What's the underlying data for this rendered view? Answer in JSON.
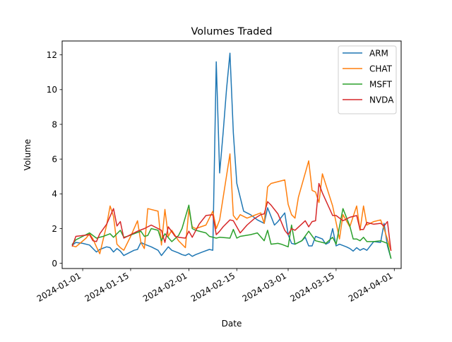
{
  "chart_data": {
    "type": "line",
    "title": "Volumes Traded",
    "xlabel": "Date",
    "ylabel": "Volume",
    "xlim": [
      "2023-12-26",
      "2024-04-03"
    ],
    "ylim": [
      -0.3,
      12.8
    ],
    "x_ticks": [
      "2024-01-01",
      "2024-01-15",
      "2024-02-01",
      "2024-02-15",
      "2024-03-01",
      "2024-03-15",
      "2024-04-01"
    ],
    "y_ticks": [
      0,
      2,
      4,
      6,
      8,
      10,
      12
    ],
    "grid": false,
    "legend_position": "top-right",
    "series": [
      {
        "name": "ARM",
        "color": "#1f77b4",
        "points": [
          [
            "2023-12-29",
            1.05
          ],
          [
            "2023-12-30",
            1.2
          ],
          [
            "2024-01-01",
            1.15
          ],
          [
            "2024-01-03",
            1.05
          ],
          [
            "2024-01-05",
            0.65
          ],
          [
            "2024-01-06",
            0.8
          ],
          [
            "2024-01-08",
            0.95
          ],
          [
            "2024-01-09",
            0.9
          ],
          [
            "2024-01-10",
            0.65
          ],
          [
            "2024-01-11",
            0.85
          ],
          [
            "2024-01-12",
            0.7
          ],
          [
            "2024-01-13",
            0.45
          ],
          [
            "2024-01-16",
            0.75
          ],
          [
            "2024-01-17",
            0.8
          ],
          [
            "2024-01-18",
            1.2
          ],
          [
            "2024-01-19",
            1.1
          ],
          [
            "2024-01-21",
            0.95
          ],
          [
            "2024-01-23",
            0.75
          ],
          [
            "2024-01-24",
            0.45
          ],
          [
            "2024-01-26",
            0.95
          ],
          [
            "2024-01-27",
            0.75
          ],
          [
            "2024-01-29",
            0.6
          ],
          [
            "2024-01-30",
            0.5
          ],
          [
            "2024-01-31",
            0.45
          ],
          [
            "2024-02-01",
            0.55
          ],
          [
            "2024-02-02",
            0.4
          ],
          [
            "2024-02-03",
            0.5
          ],
          [
            "2024-02-05",
            0.65
          ],
          [
            "2024-02-07",
            0.8
          ],
          [
            "2024-02-08",
            0.75
          ],
          [
            "2024-02-09",
            11.6
          ],
          [
            "2024-02-10",
            5.2
          ],
          [
            "2024-02-11",
            7.5
          ],
          [
            "2024-02-12",
            10.0
          ],
          [
            "2024-02-13",
            12.1
          ],
          [
            "2024-02-14",
            7.5
          ],
          [
            "2024-02-15",
            4.6
          ],
          [
            "2024-02-17",
            3.0
          ],
          [
            "2024-02-19",
            2.8
          ],
          [
            "2024-02-21",
            2.5
          ],
          [
            "2024-02-23",
            2.3
          ],
          [
            "2024-02-24",
            3.2
          ],
          [
            "2024-02-26",
            2.2
          ],
          [
            "2024-02-27",
            2.4
          ],
          [
            "2024-02-29",
            2.9
          ],
          [
            "2024-03-01",
            1.65
          ],
          [
            "2024-03-02",
            1.15
          ],
          [
            "2024-03-03",
            1.1
          ],
          [
            "2024-03-05",
            1.3
          ],
          [
            "2024-03-06",
            1.5
          ],
          [
            "2024-03-07",
            1.0
          ],
          [
            "2024-03-08",
            1.0
          ],
          [
            "2024-03-09",
            1.55
          ],
          [
            "2024-03-11",
            1.4
          ],
          [
            "2024-03-12",
            1.1
          ],
          [
            "2024-03-13",
            1.2
          ],
          [
            "2024-03-14",
            2.0
          ],
          [
            "2024-03-15",
            1.0
          ],
          [
            "2024-03-16",
            1.1
          ],
          [
            "2024-03-18",
            0.95
          ],
          [
            "2024-03-19",
            0.85
          ],
          [
            "2024-03-20",
            0.7
          ],
          [
            "2024-03-21",
            0.9
          ],
          [
            "2024-03-22",
            0.75
          ],
          [
            "2024-03-23",
            0.85
          ],
          [
            "2024-03-24",
            0.75
          ],
          [
            "2024-03-26",
            1.25
          ],
          [
            "2024-03-28",
            1.2
          ],
          [
            "2024-03-29",
            2.3
          ],
          [
            "2024-03-30",
            1.0
          ],
          [
            "2024-03-31",
            0.3
          ]
        ]
      },
      {
        "name": "CHAT",
        "color": "#ff7f0e",
        "points": [
          [
            "2023-12-29",
            1.0
          ],
          [
            "2023-12-30",
            0.95
          ],
          [
            "2024-01-02",
            1.45
          ],
          [
            "2024-01-03",
            1.7
          ],
          [
            "2024-01-04",
            1.4
          ],
          [
            "2024-01-05",
            0.95
          ],
          [
            "2024-01-06",
            0.55
          ],
          [
            "2024-01-08",
            2.2
          ],
          [
            "2024-01-09",
            3.3
          ],
          [
            "2024-01-10",
            2.7
          ],
          [
            "2024-01-11",
            1.1
          ],
          [
            "2024-01-12",
            0.9
          ],
          [
            "2024-01-13",
            0.75
          ],
          [
            "2024-01-15",
            1.55
          ],
          [
            "2024-01-17",
            2.45
          ],
          [
            "2024-01-18",
            1.2
          ],
          [
            "2024-01-19",
            0.85
          ],
          [
            "2024-01-20",
            3.15
          ],
          [
            "2024-01-23",
            3.0
          ],
          [
            "2024-01-24",
            1.05
          ],
          [
            "2024-01-25",
            3.1
          ],
          [
            "2024-01-26",
            1.55
          ],
          [
            "2024-01-27",
            1.9
          ],
          [
            "2024-01-28",
            1.6
          ],
          [
            "2024-01-29",
            1.3
          ],
          [
            "2024-01-31",
            0.9
          ],
          [
            "2024-02-01",
            3.1
          ],
          [
            "2024-02-02",
            2.1
          ],
          [
            "2024-02-03",
            2.0
          ],
          [
            "2024-02-06",
            2.2
          ],
          [
            "2024-02-08",
            3.0
          ],
          [
            "2024-02-09",
            2.0
          ],
          [
            "2024-02-10",
            2.5
          ],
          [
            "2024-02-13",
            6.3
          ],
          [
            "2024-02-14",
            2.75
          ],
          [
            "2024-02-15",
            2.5
          ],
          [
            "2024-02-16",
            2.8
          ],
          [
            "2024-02-18",
            2.6
          ],
          [
            "2024-02-20",
            2.75
          ],
          [
            "2024-02-22",
            2.9
          ],
          [
            "2024-02-23",
            2.3
          ],
          [
            "2024-02-24",
            4.4
          ],
          [
            "2024-02-25",
            4.6
          ],
          [
            "2024-02-27",
            4.7
          ],
          [
            "2024-02-29",
            4.8
          ],
          [
            "2024-03-01",
            3.4
          ],
          [
            "2024-03-02",
            2.8
          ],
          [
            "2024-03-03",
            2.6
          ],
          [
            "2024-03-04",
            3.8
          ],
          [
            "2024-03-07",
            5.9
          ],
          [
            "2024-03-08",
            4.2
          ],
          [
            "2024-03-09",
            4.1
          ],
          [
            "2024-03-10",
            3.5
          ],
          [
            "2024-03-11",
            5.15
          ],
          [
            "2024-03-14",
            3.3
          ],
          [
            "2024-03-15",
            2.35
          ],
          [
            "2024-03-16",
            1.4
          ],
          [
            "2024-03-17",
            2.8
          ],
          [
            "2024-03-19",
            2.1
          ],
          [
            "2024-03-21",
            3.3
          ],
          [
            "2024-03-22",
            1.9
          ],
          [
            "2024-03-23",
            3.3
          ],
          [
            "2024-03-24",
            2.2
          ],
          [
            "2024-03-26",
            2.4
          ],
          [
            "2024-03-28",
            2.5
          ],
          [
            "2024-03-29",
            2.0
          ],
          [
            "2024-03-31",
            0.75
          ]
        ]
      },
      {
        "name": "MSFT",
        "color": "#2ca02c",
        "points": [
          [
            "2023-12-29",
            1.1
          ],
          [
            "2023-12-30",
            1.35
          ],
          [
            "2024-01-01",
            1.55
          ],
          [
            "2024-01-03",
            1.75
          ],
          [
            "2024-01-05",
            1.45
          ],
          [
            "2024-01-07",
            1.55
          ],
          [
            "2024-01-09",
            1.7
          ],
          [
            "2024-01-10",
            1.5
          ],
          [
            "2024-01-12",
            1.9
          ],
          [
            "2024-01-13",
            1.5
          ],
          [
            "2024-01-14",
            1.55
          ],
          [
            "2024-01-16",
            1.7
          ],
          [
            "2024-01-18",
            1.85
          ],
          [
            "2024-01-19",
            1.55
          ],
          [
            "2024-01-20",
            1.6
          ],
          [
            "2024-01-21",
            2.0
          ],
          [
            "2024-01-23",
            1.9
          ],
          [
            "2024-01-24",
            1.3
          ],
          [
            "2024-01-25",
            1.7
          ],
          [
            "2024-01-27",
            1.25
          ],
          [
            "2024-01-29",
            1.6
          ],
          [
            "2024-01-30",
            2.0
          ],
          [
            "2024-02-01",
            3.35
          ],
          [
            "2024-02-02",
            2.0
          ],
          [
            "2024-02-03",
            1.9
          ],
          [
            "2024-02-06",
            1.75
          ],
          [
            "2024-02-07",
            1.55
          ],
          [
            "2024-02-09",
            1.45
          ],
          [
            "2024-02-10",
            1.5
          ],
          [
            "2024-02-13",
            1.45
          ],
          [
            "2024-02-14",
            1.95
          ],
          [
            "2024-02-15",
            1.45
          ],
          [
            "2024-02-16",
            1.55
          ],
          [
            "2024-02-19",
            1.65
          ],
          [
            "2024-02-21",
            1.75
          ],
          [
            "2024-02-23",
            1.3
          ],
          [
            "2024-02-24",
            1.9
          ],
          [
            "2024-02-25",
            1.1
          ],
          [
            "2024-02-27",
            1.15
          ],
          [
            "2024-02-28",
            1.1
          ],
          [
            "2024-03-01",
            0.95
          ],
          [
            "2024-03-02",
            2.2
          ],
          [
            "2024-03-03",
            1.1
          ],
          [
            "2024-03-05",
            1.3
          ],
          [
            "2024-03-07",
            1.85
          ],
          [
            "2024-03-09",
            1.3
          ],
          [
            "2024-03-11",
            1.2
          ],
          [
            "2024-03-12",
            1.15
          ],
          [
            "2024-03-14",
            1.5
          ],
          [
            "2024-03-15",
            1.1
          ],
          [
            "2024-03-17",
            3.15
          ],
          [
            "2024-03-19",
            2.15
          ],
          [
            "2024-03-20",
            1.4
          ],
          [
            "2024-03-21",
            1.4
          ],
          [
            "2024-03-22",
            1.3
          ],
          [
            "2024-03-23",
            1.5
          ],
          [
            "2024-03-24",
            1.25
          ],
          [
            "2024-03-26",
            1.25
          ],
          [
            "2024-03-28",
            1.3
          ],
          [
            "2024-03-30",
            1.15
          ],
          [
            "2024-03-31",
            0.3
          ]
        ]
      },
      {
        "name": "NVDA",
        "color": "#d62728",
        "points": [
          [
            "2023-12-29",
            1.0
          ],
          [
            "2023-12-30",
            1.55
          ],
          [
            "2024-01-03",
            1.65
          ],
          [
            "2024-01-04",
            1.3
          ],
          [
            "2024-01-05",
            1.25
          ],
          [
            "2024-01-06",
            1.7
          ],
          [
            "2024-01-08",
            2.25
          ],
          [
            "2024-01-10",
            3.15
          ],
          [
            "2024-01-11",
            2.15
          ],
          [
            "2024-01-12",
            2.4
          ],
          [
            "2024-01-13",
            1.45
          ],
          [
            "2024-01-15",
            1.65
          ],
          [
            "2024-01-17",
            1.85
          ],
          [
            "2024-01-19",
            2.0
          ],
          [
            "2024-01-21",
            2.2
          ],
          [
            "2024-01-24",
            1.9
          ],
          [
            "2024-01-25",
            1.2
          ],
          [
            "2024-01-26",
            2.1
          ],
          [
            "2024-01-28",
            1.55
          ],
          [
            "2024-01-29",
            1.5
          ],
          [
            "2024-01-31",
            1.45
          ],
          [
            "2024-02-01",
            1.85
          ],
          [
            "2024-02-02",
            1.5
          ],
          [
            "2024-02-04",
            2.25
          ],
          [
            "2024-02-06",
            2.75
          ],
          [
            "2024-02-08",
            2.8
          ],
          [
            "2024-02-09",
            1.65
          ],
          [
            "2024-02-10",
            1.85
          ],
          [
            "2024-02-11",
            2.1
          ],
          [
            "2024-02-13",
            2.5
          ],
          [
            "2024-02-14",
            2.45
          ],
          [
            "2024-02-16",
            1.75
          ],
          [
            "2024-02-18",
            2.2
          ],
          [
            "2024-02-20",
            2.55
          ],
          [
            "2024-02-22",
            2.8
          ],
          [
            "2024-02-23",
            2.85
          ],
          [
            "2024-02-24",
            3.55
          ],
          [
            "2024-02-25",
            3.35
          ],
          [
            "2024-02-27",
            2.85
          ],
          [
            "2024-02-29",
            1.9
          ],
          [
            "2024-03-01",
            1.65
          ],
          [
            "2024-03-02",
            2.0
          ],
          [
            "2024-03-03",
            1.9
          ],
          [
            "2024-03-06",
            2.45
          ],
          [
            "2024-03-07",
            2.1
          ],
          [
            "2024-03-08",
            2.4
          ],
          [
            "2024-03-09",
            2.45
          ],
          [
            "2024-03-10",
            4.6
          ],
          [
            "2024-03-11",
            4.05
          ],
          [
            "2024-03-14",
            2.75
          ],
          [
            "2024-03-15",
            2.75
          ],
          [
            "2024-03-17",
            2.45
          ],
          [
            "2024-03-19",
            2.65
          ],
          [
            "2024-03-21",
            2.75
          ],
          [
            "2024-03-22",
            1.95
          ],
          [
            "2024-03-23",
            1.95
          ],
          [
            "2024-03-24",
            2.35
          ],
          [
            "2024-03-26",
            2.25
          ],
          [
            "2024-03-28",
            2.3
          ],
          [
            "2024-03-29",
            2.15
          ],
          [
            "2024-03-30",
            2.4
          ],
          [
            "2024-03-31",
            0.75
          ]
        ]
      }
    ]
  }
}
